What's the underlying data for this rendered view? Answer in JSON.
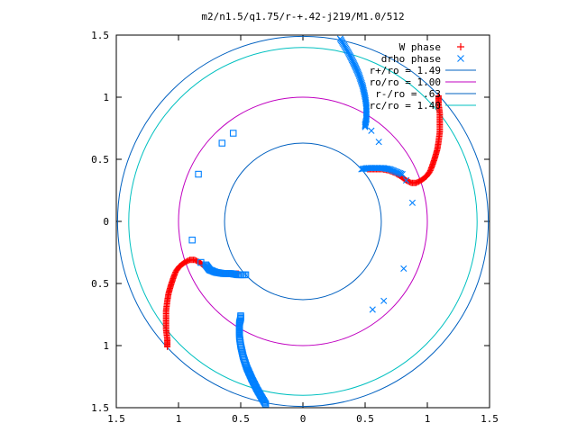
{
  "chart_data": {
    "type": "scatter",
    "title": "m2/n1.5/q1.75/r-+.42-j219/M1.0/512",
    "xlabel": "",
    "ylabel": "",
    "xlim": [
      -1.5,
      1.5
    ],
    "ylim": [
      -1.5,
      1.5
    ],
    "x_tick_labels": [
      "1.5",
      "1",
      "0.5",
      "0",
      "0.5",
      "1",
      "1.5"
    ],
    "x_tick_values": [
      -1.5,
      -1,
      -0.5,
      0,
      0.5,
      1,
      1.5
    ],
    "y_tick_labels": [
      "1.5",
      "1",
      "0.5",
      "0",
      "0.5",
      "1",
      "1.5"
    ],
    "y_tick_values": [
      1.5,
      1,
      0.5,
      0,
      -0.5,
      -1,
      -1.5
    ],
    "grid": false,
    "legend_position": "top-right",
    "series": [
      {
        "name": "W phase",
        "marker": "plus",
        "color": "#ff0000",
        "arms": [
          [
            [
              1.09,
              1.01
            ],
            [
              1.09,
              0.95
            ],
            [
              1.1,
              0.87
            ],
            [
              1.1,
              0.79
            ],
            [
              1.1,
              0.72
            ],
            [
              1.09,
              0.64
            ],
            [
              1.08,
              0.58
            ],
            [
              1.06,
              0.51
            ],
            [
              1.04,
              0.45
            ],
            [
              1.02,
              0.4
            ],
            [
              0.99,
              0.36
            ],
            [
              0.95,
              0.33
            ],
            [
              0.91,
              0.31
            ],
            [
              0.87,
              0.31
            ],
            [
              0.83,
              0.33
            ],
            [
              0.79,
              0.36
            ],
            [
              0.74,
              0.39
            ],
            [
              0.69,
              0.41
            ],
            [
              0.64,
              0.42
            ],
            [
              0.6,
              0.42
            ],
            [
              0.56,
              0.42
            ],
            [
              0.52,
              0.42
            ]
          ],
          [
            [
              -1.09,
              -1.01
            ],
            [
              -1.09,
              -0.95
            ],
            [
              -1.1,
              -0.87
            ],
            [
              -1.1,
              -0.79
            ],
            [
              -1.1,
              -0.72
            ],
            [
              -1.09,
              -0.64
            ],
            [
              -1.08,
              -0.58
            ],
            [
              -1.06,
              -0.51
            ],
            [
              -1.04,
              -0.45
            ],
            [
              -1.02,
              -0.4
            ],
            [
              -0.99,
              -0.36
            ],
            [
              -0.95,
              -0.33
            ],
            [
              -0.91,
              -0.31
            ],
            [
              -0.87,
              -0.31
            ],
            [
              -0.83,
              -0.33
            ],
            [
              -0.79,
              -0.36
            ],
            [
              -0.74,
              -0.39
            ],
            [
              -0.69,
              -0.41
            ],
            [
              -0.64,
              -0.42
            ],
            [
              -0.6,
              -0.42
            ],
            [
              -0.56,
              -0.42
            ],
            [
              -0.52,
              -0.42
            ]
          ]
        ]
      },
      {
        "name": "drho phase",
        "marker": "cross-square",
        "color": "#0080ff",
        "arms": [
          [
            [
              0.3,
              1.47
            ],
            [
              0.33,
              1.42
            ],
            [
              0.37,
              1.35
            ],
            [
              0.41,
              1.27
            ],
            [
              0.45,
              1.18
            ],
            [
              0.48,
              1.09
            ],
            [
              0.5,
              1.0
            ],
            [
              0.51,
              0.93
            ],
            [
              0.51,
              0.87
            ],
            [
              0.51,
              0.82
            ],
            [
              0.5,
              0.78
            ],
            [
              0.5,
              0.76
            ]
          ],
          [
            [
              -0.3,
              -1.47
            ],
            [
              -0.33,
              -1.42
            ],
            [
              -0.37,
              -1.35
            ],
            [
              -0.41,
              -1.27
            ],
            [
              -0.45,
              -1.18
            ],
            [
              -0.48,
              -1.09
            ],
            [
              -0.5,
              -1.0
            ],
            [
              -0.51,
              -0.93
            ],
            [
              -0.51,
              -0.87
            ],
            [
              -0.51,
              -0.82
            ],
            [
              -0.5,
              -0.78
            ],
            [
              -0.5,
              -0.76
            ]
          ],
          [
            [
              0.47,
              0.42
            ],
            [
              0.52,
              0.43
            ],
            [
              0.58,
              0.43
            ],
            [
              0.64,
              0.43
            ],
            [
              0.7,
              0.42
            ],
            [
              0.75,
              0.4
            ],
            [
              0.8,
              0.38
            ]
          ],
          [
            [
              -0.46,
              -0.43
            ],
            [
              -0.52,
              -0.43
            ],
            [
              -0.58,
              -0.42
            ],
            [
              -0.64,
              -0.42
            ],
            [
              -0.7,
              -0.41
            ],
            [
              -0.75,
              -0.39
            ],
            [
              -0.78,
              -0.35
            ]
          ]
        ],
        "scattered": [
          [
            0.55,
            0.73
          ],
          [
            0.61,
            0.64
          ],
          [
            0.83,
            0.33
          ],
          [
            0.88,
            0.15
          ],
          [
            0.81,
            -0.38
          ],
          [
            0.65,
            -0.64
          ],
          [
            0.56,
            -0.71
          ],
          [
            -0.56,
            0.71
          ],
          [
            -0.65,
            0.63
          ],
          [
            -0.84,
            0.38
          ],
          [
            -0.89,
            -0.15
          ],
          [
            -0.82,
            -0.33
          ]
        ]
      }
    ],
    "circles": [
      {
        "name": "r+/ro = 1.49",
        "radius": 1.49,
        "color": "#0060c0"
      },
      {
        "name": "ro/ro = 1.00",
        "radius": 1.0,
        "color": "#c000c0"
      },
      {
        "name": "r-/ro = .63",
        "radius": 0.63,
        "color": "#0060c0"
      },
      {
        "name": "rc/ro = 1.40",
        "radius": 1.4,
        "color": "#00c0c0"
      }
    ]
  }
}
